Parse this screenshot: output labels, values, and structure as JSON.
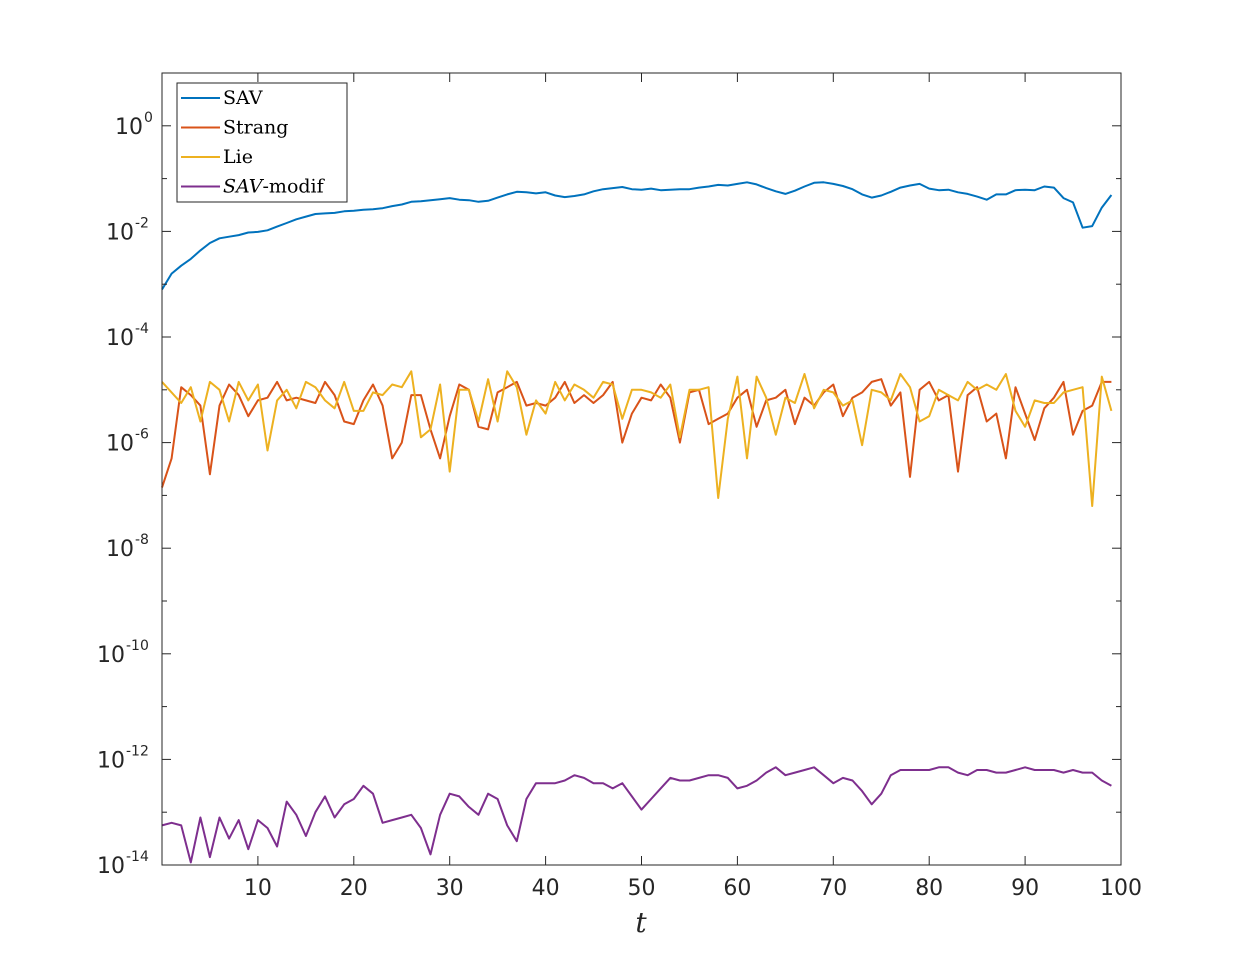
{
  "chart_data": {
    "type": "line",
    "xlabel": "t",
    "ylabel": "",
    "title": "",
    "yscale": "log",
    "xlim": [
      0,
      100
    ],
    "ylim": [
      1e-14,
      10
    ],
    "grid": false,
    "legend_position": "top-left",
    "x_ticks": [
      10,
      20,
      30,
      40,
      50,
      60,
      70,
      80,
      90,
      100
    ],
    "y_ticks": [
      {
        "base": "10",
        "exp": "0",
        "value": 1
      },
      {
        "base": "10",
        "exp": "-2",
        "value": 0.01
      },
      {
        "base": "10",
        "exp": "-4",
        "value": 0.0001
      },
      {
        "base": "10",
        "exp": "-6",
        "value": 1e-06
      },
      {
        "base": "10",
        "exp": "-8",
        "value": 1e-08
      },
      {
        "base": "10",
        "exp": "-10",
        "value": 1e-10
      },
      {
        "base": "10",
        "exp": "-12",
        "value": 1e-12
      },
      {
        "base": "10",
        "exp": "-14",
        "value": 1e-14
      }
    ],
    "x": [
      0,
      1,
      2,
      3,
      4,
      5,
      6,
      7,
      8,
      9,
      10,
      11,
      12,
      13,
      14,
      15,
      16,
      17,
      18,
      19,
      20,
      21,
      22,
      23,
      24,
      25,
      26,
      27,
      28,
      29,
      30,
      31,
      32,
      33,
      34,
      35,
      36,
      37,
      38,
      39,
      40,
      41,
      42,
      43,
      44,
      45,
      46,
      47,
      48,
      49,
      50,
      51,
      52,
      53,
      54,
      55,
      56,
      57,
      58,
      59,
      60,
      61,
      62,
      63,
      64,
      65,
      66,
      67,
      68,
      69,
      70,
      71,
      72,
      73,
      74,
      75,
      76,
      77,
      78,
      79,
      80,
      81,
      82,
      83,
      84,
      85,
      86,
      87,
      88,
      89,
      90,
      91,
      92,
      93,
      94,
      95,
      96,
      97,
      98,
      99
    ],
    "series": [
      {
        "name": "SAV",
        "color": "#0072BD",
        "log10_values": [
          -3.1,
          -2.8,
          -2.65,
          -2.52,
          -2.36,
          -2.22,
          -2.13,
          -2.1,
          -2.07,
          -2.02,
          -2.01,
          -1.98,
          -1.91,
          -1.84,
          -1.77,
          -1.72,
          -1.67,
          -1.66,
          -1.65,
          -1.62,
          -1.61,
          -1.59,
          -1.58,
          -1.56,
          -1.52,
          -1.49,
          -1.44,
          -1.43,
          -1.41,
          -1.39,
          -1.37,
          -1.4,
          -1.41,
          -1.44,
          -1.42,
          -1.36,
          -1.3,
          -1.25,
          -1.26,
          -1.28,
          -1.26,
          -1.32,
          -1.35,
          -1.33,
          -1.3,
          -1.24,
          -1.2,
          -1.18,
          -1.16,
          -1.2,
          -1.21,
          -1.19,
          -1.22,
          -1.21,
          -1.2,
          -1.2,
          -1.17,
          -1.15,
          -1.12,
          -1.13,
          -1.1,
          -1.07,
          -1.11,
          -1.18,
          -1.24,
          -1.29,
          -1.23,
          -1.15,
          -1.08,
          -1.07,
          -1.1,
          -1.14,
          -1.2,
          -1.3,
          -1.36,
          -1.32,
          -1.25,
          -1.17,
          -1.13,
          -1.1,
          -1.19,
          -1.22,
          -1.21,
          -1.26,
          -1.29,
          -1.34,
          -1.4,
          -1.3,
          -1.3,
          -1.22,
          -1.21,
          -1.22,
          -1.15,
          -1.17,
          -1.37,
          -1.45,
          -1.93,
          -1.9,
          -1.55,
          -1.31
        ]
      },
      {
        "name": "Strang",
        "color": "#D95319",
        "log10_values": [
          -6.85,
          -6.3,
          -4.95,
          -5.1,
          -5.3,
          -6.6,
          -5.3,
          -4.9,
          -5.1,
          -5.5,
          -5.2,
          -5.15,
          -4.85,
          -5.2,
          -5.15,
          -5.2,
          -5.25,
          -4.85,
          -5.1,
          -5.6,
          -5.65,
          -5.2,
          -4.9,
          -5.3,
          -6.3,
          -6.0,
          -5.1,
          -5.1,
          -5.75,
          -6.3,
          -5.5,
          -4.9,
          -5.0,
          -5.7,
          -5.75,
          -5.05,
          -4.95,
          -4.85,
          -5.3,
          -5.25,
          -5.3,
          -5.15,
          -4.85,
          -5.25,
          -5.1,
          -5.25,
          -5.1,
          -4.85,
          -6.0,
          -5.45,
          -5.15,
          -5.2,
          -4.9,
          -5.15,
          -6.0,
          -5.05,
          -5.0,
          -5.65,
          -5.55,
          -5.45,
          -5.15,
          -5.0,
          -5.7,
          -5.2,
          -5.15,
          -5.0,
          -5.65,
          -5.15,
          -5.3,
          -5.05,
          -4.9,
          -5.5,
          -5.15,
          -5.05,
          -4.85,
          -4.8,
          -5.3,
          -5.05,
          -6.65,
          -5.0,
          -4.85,
          -5.2,
          -5.1,
          -6.55,
          -5.1,
          -4.95,
          -5.6,
          -5.45,
          -6.3,
          -4.95,
          -5.45,
          -5.95,
          -5.35,
          -5.15,
          -4.85,
          -5.85,
          -5.4,
          -5.3,
          -4.85,
          -4.85
        ]
      },
      {
        "name": "Lie",
        "color": "#EDB120",
        "log10_values": [
          -4.85,
          -5.05,
          -5.25,
          -4.95,
          -5.6,
          -4.85,
          -5.0,
          -5.6,
          -4.85,
          -5.2,
          -4.9,
          -6.15,
          -5.2,
          -5.0,
          -5.35,
          -4.85,
          -4.95,
          -5.2,
          -5.35,
          -4.85,
          -5.4,
          -5.4,
          -5.05,
          -5.1,
          -4.9,
          -4.95,
          -4.65,
          -5.9,
          -5.75,
          -4.9,
          -6.55,
          -5.0,
          -5.0,
          -5.6,
          -4.8,
          -5.6,
          -4.65,
          -4.95,
          -5.85,
          -5.2,
          -5.45,
          -4.85,
          -5.2,
          -4.9,
          -5.0,
          -5.15,
          -4.85,
          -4.9,
          -5.55,
          -5.0,
          -5.0,
          -5.05,
          -5.15,
          -4.9,
          -5.9,
          -5.0,
          -5.0,
          -4.95,
          -7.05,
          -5.55,
          -4.75,
          -6.3,
          -4.75,
          -5.15,
          -5.85,
          -5.15,
          -5.25,
          -4.7,
          -5.35,
          -5.0,
          -5.05,
          -5.3,
          -5.2,
          -6.05,
          -5.0,
          -5.05,
          -5.2,
          -4.7,
          -4.95,
          -5.6,
          -5.5,
          -5.0,
          -5.1,
          -5.2,
          -4.85,
          -5.0,
          -4.9,
          -5.0,
          -4.7,
          -5.4,
          -5.7,
          -5.2,
          -5.25,
          -5.25,
          -5.05,
          -5.0,
          -4.95,
          -7.2,
          -4.75,
          -5.4
        ]
      },
      {
        "name": "SAV-modif",
        "label_italic": "SAV",
        "label_suffix": "-modif",
        "color": "#7E2F8E",
        "log10_values": [
          -13.25,
          -13.2,
          -13.25,
          -13.95,
          -13.1,
          -13.85,
          -13.1,
          -13.5,
          -13.15,
          -13.7,
          -13.15,
          -13.3,
          -13.65,
          -12.8,
          -13.05,
          -13.45,
          -13.0,
          -12.7,
          -13.1,
          -12.85,
          -12.75,
          -12.5,
          -12.65,
          -13.2,
          -13.15,
          -13.1,
          -13.05,
          -13.3,
          -13.8,
          -13.05,
          -12.65,
          -12.7,
          -12.9,
          -13.05,
          -12.65,
          -12.75,
          -13.25,
          -13.55,
          -12.75,
          -12.45,
          -12.45,
          -12.45,
          -12.4,
          -12.3,
          -12.35,
          -12.45,
          -12.45,
          -12.55,
          -12.45,
          -12.7,
          -12.95,
          -12.75,
          -12.55,
          -12.35,
          -12.4,
          -12.4,
          -12.35,
          -12.3,
          -12.3,
          -12.35,
          -12.55,
          -12.5,
          -12.4,
          -12.25,
          -12.15,
          -12.3,
          -12.25,
          -12.2,
          -12.15,
          -12.3,
          -12.45,
          -12.35,
          -12.4,
          -12.6,
          -12.85,
          -12.65,
          -12.3,
          -12.2,
          -12.2,
          -12.2,
          -12.2,
          -12.15,
          -12.15,
          -12.25,
          -12.3,
          -12.2,
          -12.2,
          -12.25,
          -12.25,
          -12.2,
          -12.15,
          -12.2,
          -12.2,
          -12.2,
          -12.25,
          -12.2,
          -12.25,
          -12.25,
          -12.4,
          -12.5
        ]
      }
    ]
  }
}
